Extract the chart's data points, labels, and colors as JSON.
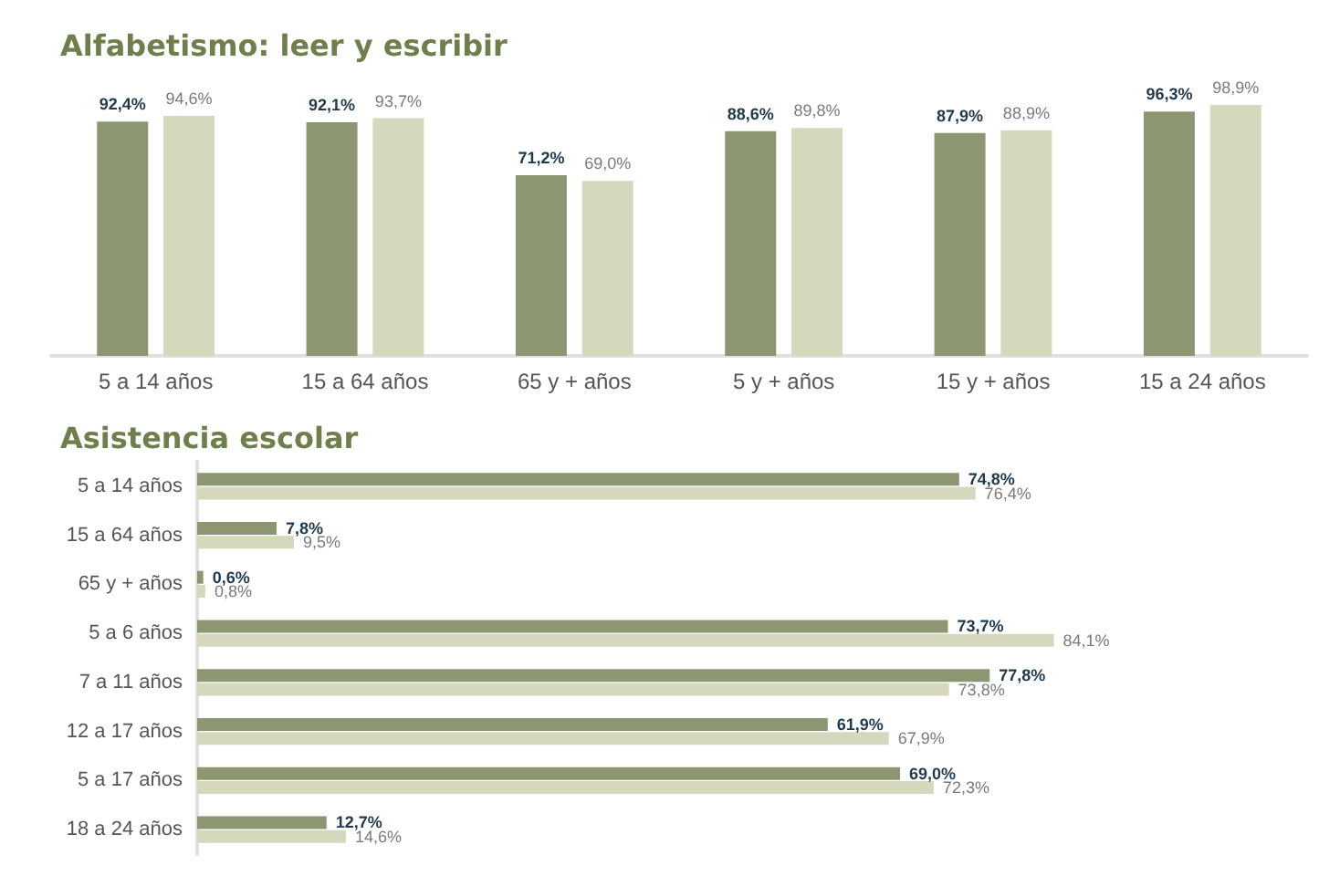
{
  "chart_data": [
    {
      "type": "bar",
      "title": "Alfabetismo: leer y escribir",
      "categories": [
        "5 a 14 años",
        "15 a 64 años",
        "65 y + años",
        "5 y + años",
        "15 y + años",
        "15 a 24 años"
      ],
      "series": [
        {
          "color": "#8c9670",
          "values": [
            92.4,
            92.1,
            71.2,
            88.6,
            87.9,
            96.3
          ],
          "value_labels": [
            "92,4%",
            "92,1%",
            "71,2%",
            "88,6%",
            "87,9%",
            "96,3%"
          ]
        },
        {
          "color": "#d5d8bd",
          "values": [
            94.6,
            93.7,
            69.0,
            89.8,
            88.9,
            98.9
          ],
          "value_labels": [
            "94,6%",
            "93,7%",
            "69,0%",
            "89,8%",
            "88,9%",
            "98,9%"
          ]
        }
      ]
    },
    {
      "type": "bar",
      "orientation": "horizontal",
      "title": "Asistencia escolar",
      "categories": [
        "5 a 14 años",
        "15 a 64 años",
        "65 y + años",
        "5 a 6 años",
        "7 a 11 años",
        "12 a 17 años",
        "5 a 17 años",
        "18 a 24 años"
      ],
      "series": [
        {
          "color": "#8c9670",
          "values": [
            74.8,
            7.8,
            0.6,
            73.7,
            77.8,
            61.9,
            69.0,
            12.7
          ],
          "value_labels": [
            "74,8%",
            "7,8%",
            "0,6%",
            "73,7%",
            "77,8%",
            "61,9%",
            "69,0%",
            "12,7%"
          ]
        },
        {
          "color": "#d5d8bd",
          "values": [
            76.4,
            9.5,
            0.8,
            84.1,
            73.8,
            67.9,
            72.3,
            14.6
          ],
          "value_labels": [
            "76,4%",
            "9,5%",
            "0,8%",
            "84,1%",
            "73,8%",
            "67,9%",
            "72,3%",
            "14,6%"
          ]
        }
      ]
    }
  ]
}
